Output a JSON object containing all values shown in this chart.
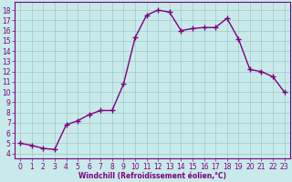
{
  "x": [
    0,
    1,
    2,
    3,
    4,
    5,
    6,
    7,
    8,
    9,
    10,
    11,
    12,
    13,
    14,
    15,
    16,
    17,
    18,
    19,
    20,
    21,
    22,
    23
  ],
  "y": [
    5.0,
    4.8,
    4.5,
    4.4,
    6.8,
    7.2,
    7.8,
    8.2,
    8.2,
    10.8,
    15.3,
    17.5,
    18.0,
    17.8,
    16.0,
    16.2,
    16.3,
    16.3,
    17.2,
    15.2,
    12.2,
    12.0,
    11.5,
    10.0
  ],
  "line_color": "#7f007f",
  "marker": "+",
  "marker_size": 4,
  "marker_lw": 1.0,
  "bg_color": "#c8eaea",
  "grid_color": "#a0c8c8",
  "xlabel": "Windchill (Refroidissement éolien,°C)",
  "ylabel": "",
  "xlim": [
    -0.5,
    23.5
  ],
  "ylim": [
    3.5,
    18.8
  ],
  "yticks": [
    4,
    5,
    6,
    7,
    8,
    9,
    10,
    11,
    12,
    13,
    14,
    15,
    16,
    17,
    18
  ],
  "xticks": [
    0,
    1,
    2,
    3,
    4,
    5,
    6,
    7,
    8,
    9,
    10,
    11,
    12,
    13,
    14,
    15,
    16,
    17,
    18,
    19,
    20,
    21,
    22,
    23
  ],
  "tick_color": "#7f007f",
  "label_color": "#7f007f",
  "title": "",
  "axis_color": "#7f007f",
  "xlabel_fontsize": 5.5,
  "tick_fontsize": 5.5,
  "linewidth": 1.0
}
